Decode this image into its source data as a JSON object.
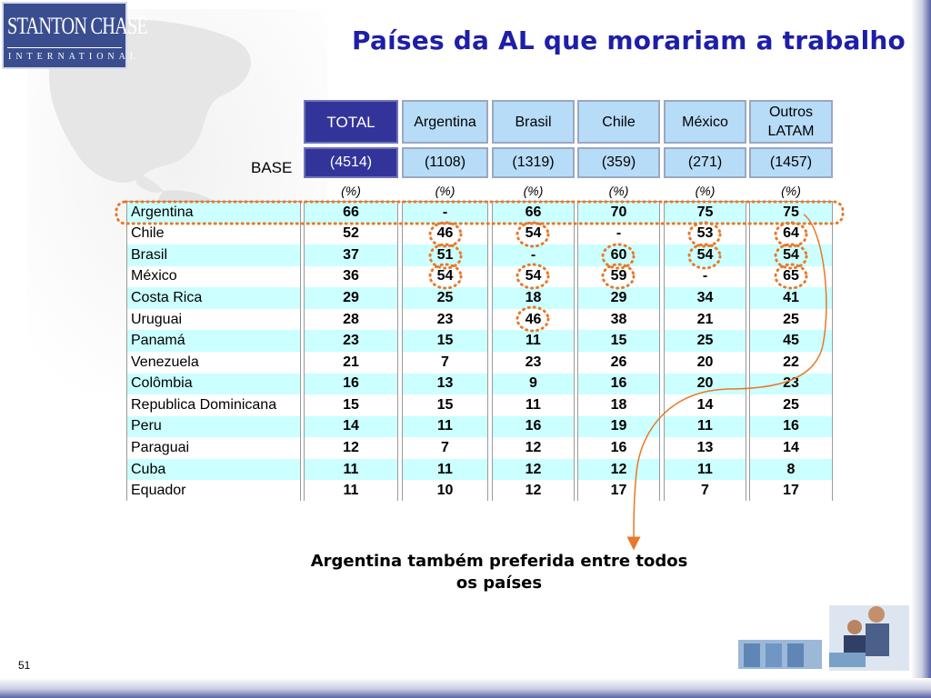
{
  "title": "Países da AL que morariam a trabalho",
  "logo": {
    "name": "STANTON CHASE",
    "sub": "INTERNATIONAL"
  },
  "columns": [
    {
      "header": "TOTAL",
      "base": "(4514)",
      "unit": "(%)"
    },
    {
      "header": "Argentina",
      "base": "(1108)",
      "unit": "(%)"
    },
    {
      "header": "Brasil",
      "base": "(1319)",
      "unit": "(%)"
    },
    {
      "header": "Chile",
      "base": "(359)",
      "unit": "(%)"
    },
    {
      "header": "México",
      "base": "(271)",
      "unit": "(%)"
    },
    {
      "header": "Outros LATAM",
      "base": "(1457)",
      "unit": "(%)"
    }
  ],
  "base_label": "BASE",
  "rows": [
    {
      "label": "Argentina",
      "values": [
        "66",
        "-",
        "66",
        "70",
        "75",
        "75"
      ]
    },
    {
      "label": "Chile",
      "values": [
        "52",
        "46",
        "54",
        "-",
        "53",
        "64"
      ]
    },
    {
      "label": "Brasil",
      "values": [
        "37",
        "51",
        "-",
        "60",
        "54",
        "54"
      ]
    },
    {
      "label": "México",
      "values": [
        "36",
        "54",
        "54",
        "59",
        "-",
        "65"
      ]
    },
    {
      "label": "Costa Rica",
      "values": [
        "29",
        "25",
        "18",
        "29",
        "34",
        "41"
      ]
    },
    {
      "label": "Uruguai",
      "values": [
        "28",
        "23",
        "46",
        "38",
        "21",
        "25"
      ]
    },
    {
      "label": "Panamá",
      "values": [
        "23",
        "15",
        "11",
        "15",
        "25",
        "45"
      ]
    },
    {
      "label": "Venezuela",
      "values": [
        "21",
        "7",
        "23",
        "26",
        "20",
        "22"
      ]
    },
    {
      "label": "Colômbia",
      "values": [
        "16",
        "13",
        "9",
        "16",
        "20",
        "23"
      ]
    },
    {
      "label": "Republica Dominicana",
      "values": [
        "15",
        "15",
        "11",
        "18",
        "14",
        "25"
      ]
    },
    {
      "label": "Peru",
      "values": [
        "14",
        "11",
        "16",
        "19",
        "11",
        "16"
      ]
    },
    {
      "label": "Paraguai",
      "values": [
        "12",
        "7",
        "12",
        "16",
        "13",
        "14"
      ]
    },
    {
      "label": "Cuba",
      "values": [
        "11",
        "11",
        "12",
        "12",
        "11",
        "8"
      ]
    },
    {
      "label": "Equador",
      "values": [
        "11",
        "10",
        "12",
        "17",
        "7",
        "17"
      ]
    }
  ],
  "caption": "Argentina também preferida entre todos os países",
  "page_number": "51",
  "colors": {
    "title": "#1e1ea8",
    "total_header": "#33349a",
    "header": "#b7dcf8",
    "row_highlight": "#ccffff",
    "annotation": "#e8782a"
  },
  "icons": {
    "background": "world-map-icon",
    "photo": "office-people-photo-icon"
  }
}
